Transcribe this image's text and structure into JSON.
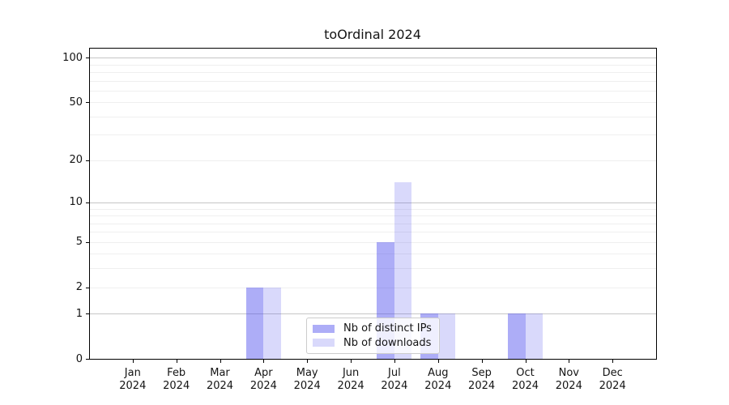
{
  "chart_data": {
    "type": "bar",
    "title": "toOrdinal 2024",
    "categories": [
      "Jan",
      "Feb",
      "Mar",
      "Apr",
      "May",
      "Jun",
      "Jul",
      "Aug",
      "Sep",
      "Oct",
      "Nov",
      "Dec"
    ],
    "category_year": "2024",
    "series": [
      {
        "name": "Nb of distinct IPs",
        "color": "rgba(77,77,238,0.46)",
        "values": [
          0,
          0,
          0,
          2,
          0,
          0,
          5,
          1,
          0,
          1,
          0,
          0
        ]
      },
      {
        "name": "Nb of downloads",
        "color": "rgba(77,77,238,0.21)",
        "values": [
          0,
          0,
          0,
          2,
          0,
          0,
          14,
          1,
          0,
          1,
          0,
          0
        ]
      }
    ],
    "yticks": [
      0,
      1,
      2,
      5,
      10,
      20,
      50,
      100
    ],
    "scale": "log1p",
    "ylim": [
      0,
      116
    ],
    "grid": {
      "major_values": [
        1,
        10,
        100
      ],
      "minor_values": [
        2,
        3,
        4,
        5,
        6,
        7,
        8,
        9,
        20,
        30,
        40,
        50,
        60,
        70,
        80,
        90
      ],
      "major_color": "#c6c6c6",
      "minor_color": "#efefef"
    },
    "legend": {
      "position": "lower center"
    }
  }
}
